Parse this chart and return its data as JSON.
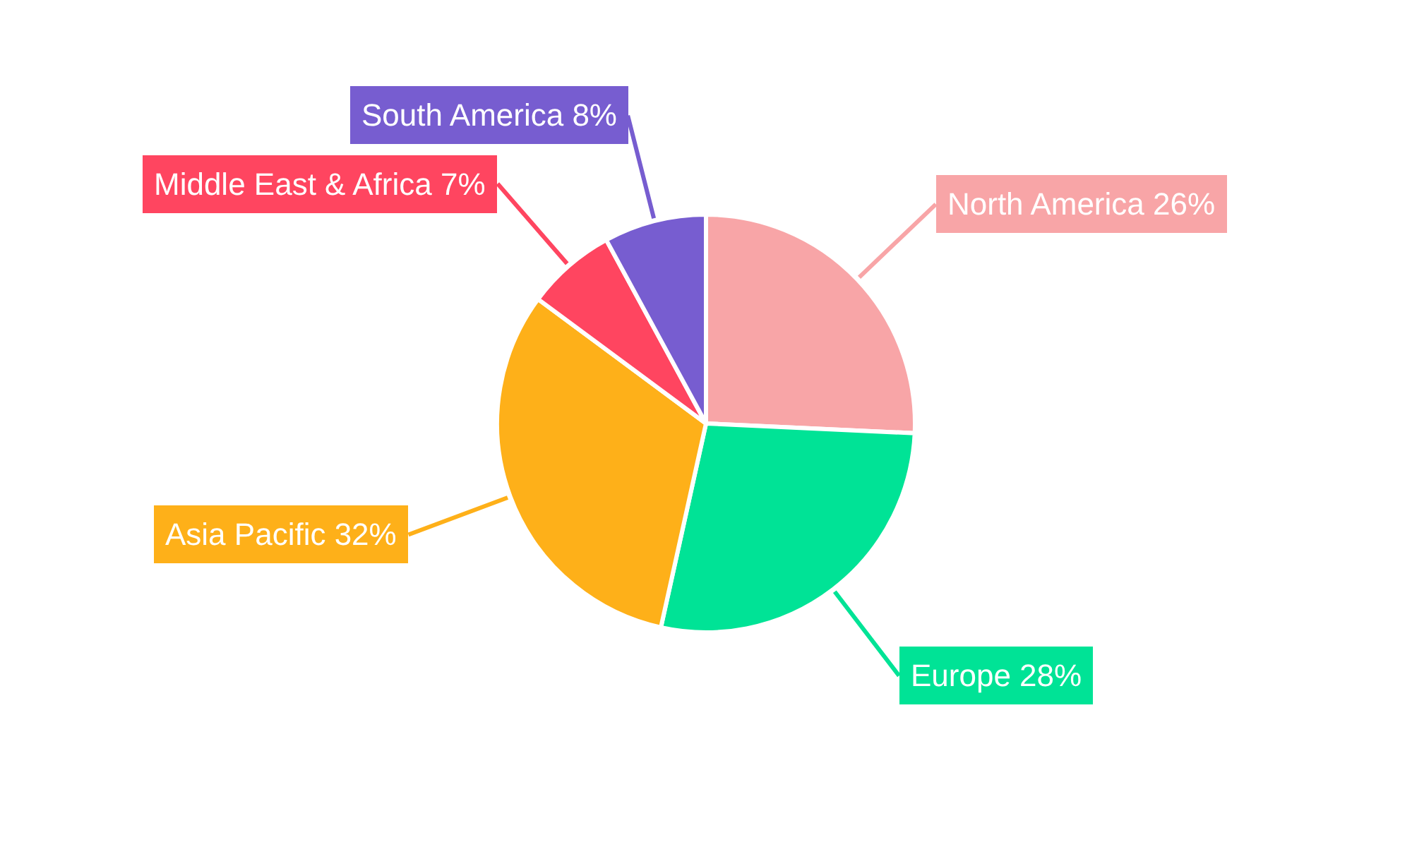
{
  "chart_data": {
    "type": "pie",
    "categories": [
      "North America",
      "Europe",
      "Asia Pacific",
      "Middle East & Africa",
      "South America"
    ],
    "values": [
      26,
      28,
      32,
      7,
      8
    ],
    "colors": [
      "#f8a5a7",
      "#00e396",
      "#feb019",
      "#ff4560",
      "#775dd0"
    ],
    "value_labels": [
      "26%",
      "28%",
      "32%",
      "7%",
      "8%"
    ]
  }
}
